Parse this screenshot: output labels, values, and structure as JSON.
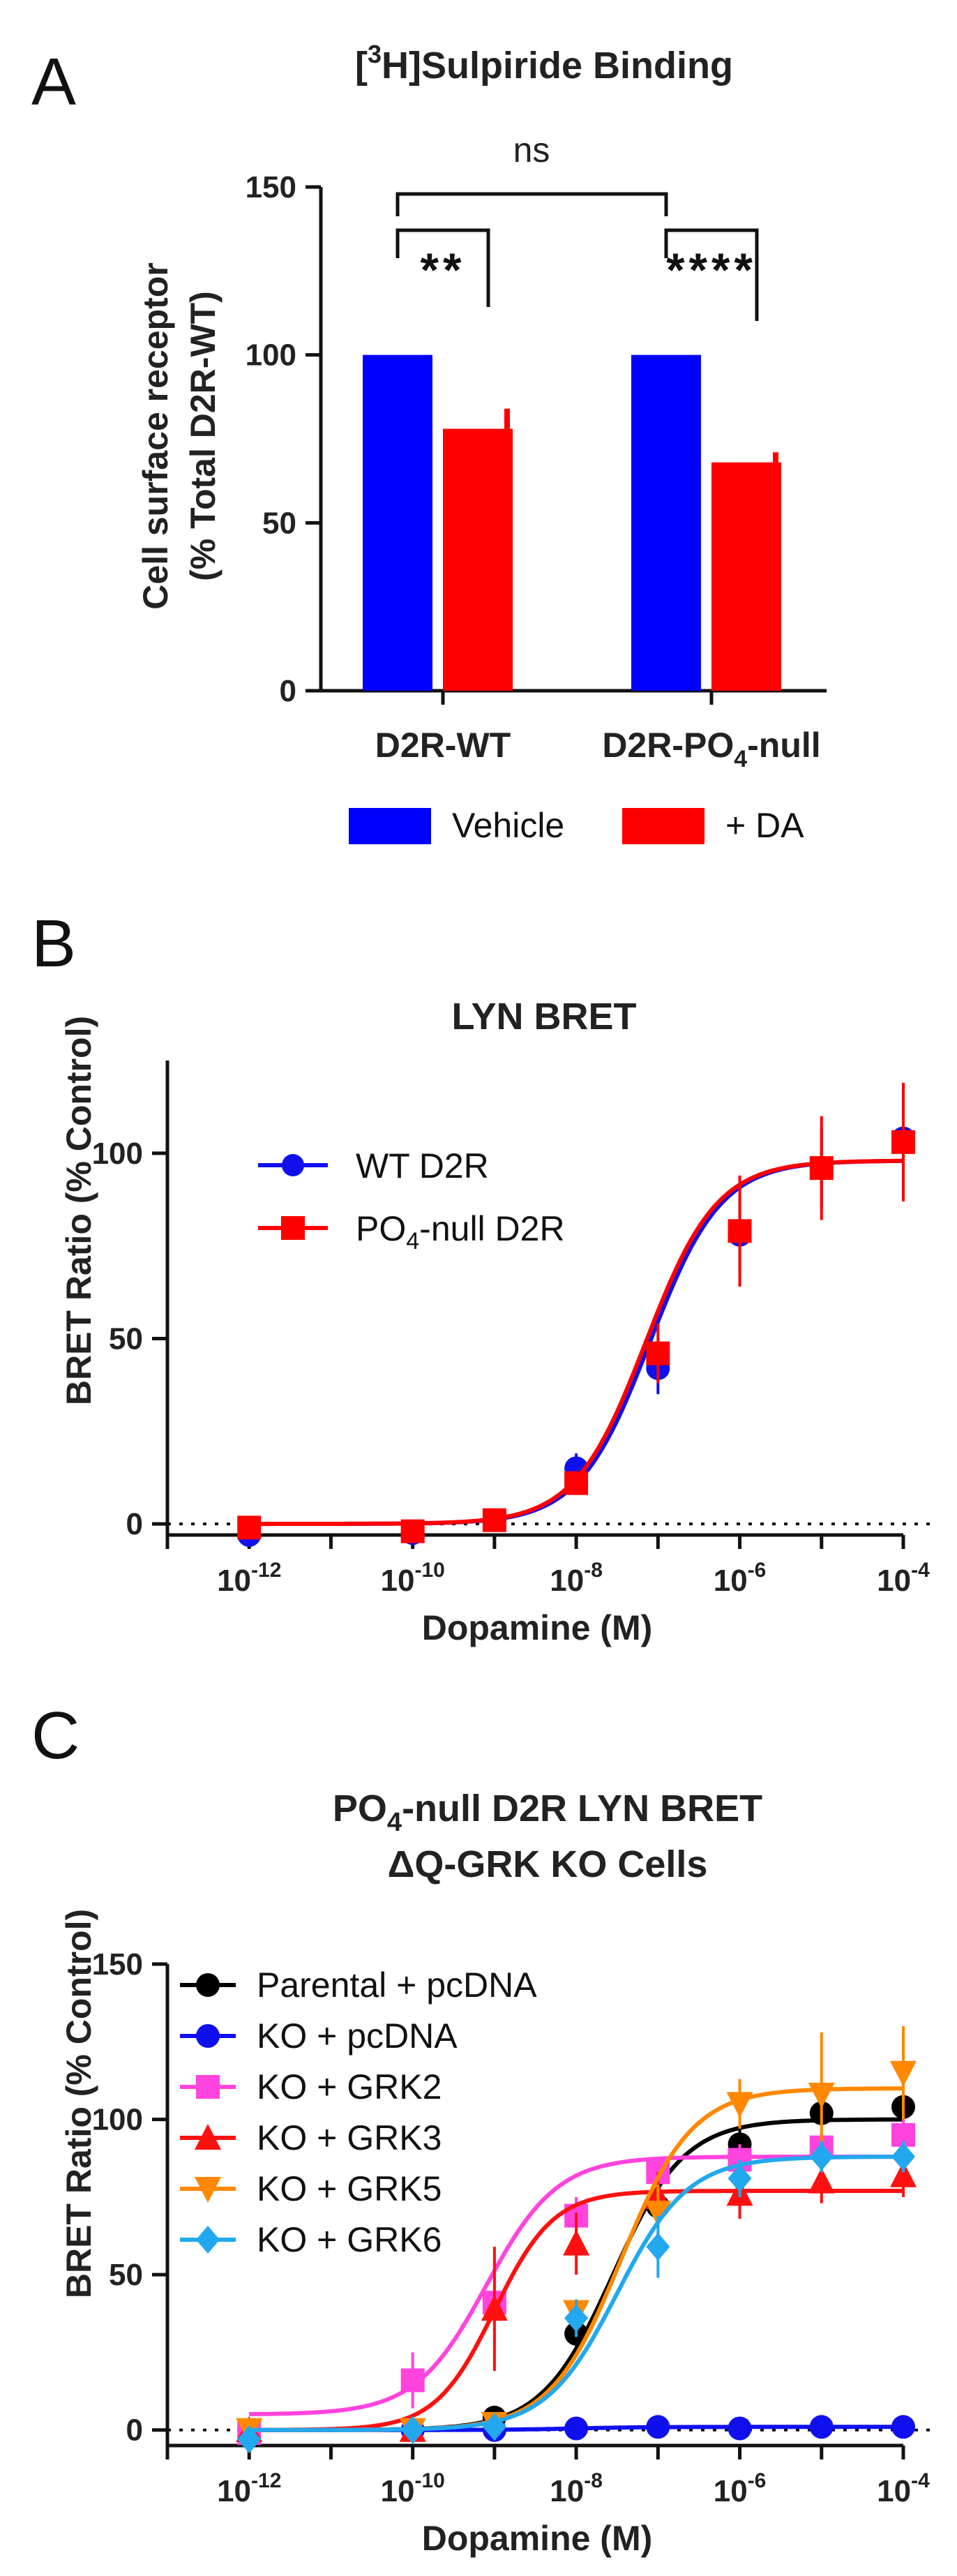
{
  "panels": {
    "a": {
      "letter": "A",
      "title_pre": "[",
      "title_sup": "3",
      "title_post": "H]Sulpiride Binding",
      "ylabel_line1": "Cell surface receptor",
      "ylabel_line2": "(% Total D2R-WT)",
      "significance": {
        "wt": "**",
        "null": "****",
        "between": "ns"
      },
      "legend": [
        "Vehicle",
        "+ DA"
      ],
      "category_labels": [
        {
          "main": "D2R-WT",
          "sub": "",
          "tail": ""
        },
        {
          "main": "D2R-PO",
          "sub": "4",
          "tail": "-null"
        }
      ]
    },
    "b": {
      "letter": "B",
      "title": "LYN BRET",
      "ylabel": "BRET Ratio (% Control)",
      "xlabel": "Dopamine (M)",
      "legend": [
        {
          "pre": "WT D2R",
          "sub": "",
          "post": ""
        },
        {
          "pre": "PO",
          "sub": "4",
          "post": "-null D2R"
        }
      ]
    },
    "c": {
      "letter": "C",
      "title_line1_pre": "PO",
      "title_line1_sub": "4",
      "title_line1_post": "-null D2R LYN BRET",
      "title_line2": "ΔQ-GRK KO Cells",
      "ylabel": "BRET Ratio (% Control)",
      "xlabel": "Dopamine (M)"
    }
  },
  "chart_data": [
    {
      "type": "bar",
      "title": "[3H]Sulpiride Binding",
      "ylabel": "Cell surface receptor (% Total D2R-WT)",
      "categories": [
        "D2R-WT",
        "D2R-PO4-null"
      ],
      "series": [
        {
          "name": "Vehicle",
          "color": "#0000ff",
          "values": [
            100,
            100
          ],
          "errors": [
            0,
            0
          ]
        },
        {
          "name": "+ DA",
          "color": "#ff0000",
          "values": [
            78,
            68
          ],
          "errors": [
            6,
            3
          ]
        }
      ],
      "ylim": [
        0,
        150
      ],
      "yticks": [
        0,
        50,
        100,
        150
      ]
    },
    {
      "type": "line",
      "title": "LYN BRET",
      "xlabel": "Dopamine (M)",
      "ylabel": "BRET Ratio (% Control)",
      "x_scale": "log",
      "xlim": [
        1e-13,
        0.0001
      ],
      "xticks": [
        {
          "base": "10",
          "exp": "-12"
        },
        {
          "base": "10",
          "exp": "-10"
        },
        {
          "base": "10",
          "exp": "-8"
        },
        {
          "base": "10",
          "exp": "-6"
        },
        {
          "base": "10",
          "exp": "-4"
        }
      ],
      "xtick_values": [
        1e-12,
        1e-10,
        1e-08,
        1e-06,
        0.0001
      ],
      "ylim": [
        -3,
        125
      ],
      "yticks": [
        0,
        50,
        100
      ],
      "baseline": 0,
      "legend_position": "upper-left",
      "series": [
        {
          "name": "WT D2R",
          "color": "#1010ee",
          "marker": "circle",
          "x": [
            1e-12,
            1e-10,
            1e-09,
            1e-08,
            1e-07,
            1e-06,
            1e-05,
            0.0001
          ],
          "y": [
            -3,
            -2.5,
            1,
            15,
            42,
            78,
            96,
            104
          ],
          "err": [
            0,
            0,
            1,
            4,
            7,
            10,
            11,
            14
          ],
          "fit": {
            "bottom": 0,
            "top": 98,
            "logEC50": -7.1,
            "hill": 1
          }
        },
        {
          "name": "PO4-null D2R",
          "color": "#ff0000",
          "marker": "square",
          "x": [
            1e-12,
            1e-10,
            1e-09,
            1e-08,
            1e-07,
            1e-06,
            1e-05,
            0.0001
          ],
          "y": [
            -1,
            -2,
            1,
            11,
            46,
            79,
            96,
            103
          ],
          "err": [
            0,
            0,
            1,
            3,
            8,
            15,
            14,
            16
          ],
          "fit": {
            "bottom": 0,
            "top": 98,
            "logEC50": -7.15,
            "hill": 1
          }
        }
      ]
    },
    {
      "type": "line",
      "title": "PO4-null D2R LYN BRET ΔQ-GRK KO Cells",
      "xlabel": "Dopamine (M)",
      "ylabel": "BRET Ratio (% Control)",
      "x_scale": "log",
      "xlim": [
        1e-13,
        0.0001
      ],
      "xticks": [
        {
          "base": "10",
          "exp": "-12"
        },
        {
          "base": "10",
          "exp": "-10"
        },
        {
          "base": "10",
          "exp": "-8"
        },
        {
          "base": "10",
          "exp": "-6"
        },
        {
          "base": "10",
          "exp": "-4"
        }
      ],
      "xtick_values": [
        1e-12,
        1e-10,
        1e-08,
        1e-06,
        0.0001
      ],
      "ylim": [
        -5,
        150
      ],
      "yticks": [
        0,
        50,
        100,
        150
      ],
      "baseline": 0,
      "legend_position": "upper-left",
      "series": [
        {
          "name": "Parental + pcDNA",
          "color": "#000000",
          "marker": "circle",
          "x": [
            1e-12,
            1e-10,
            1e-09,
            1e-08,
            1e-07,
            1e-06,
            1e-05,
            0.0001
          ],
          "y": [
            0,
            0,
            4,
            31,
            72,
            92,
            102,
            104
          ],
          "err": [
            0,
            0,
            2,
            4,
            6,
            5,
            4,
            4
          ],
          "fit": {
            "bottom": 0,
            "top": 100,
            "logEC50": -7.55,
            "hill": 1
          }
        },
        {
          "name": "KO + pcDNA",
          "color": "#1010ee",
          "marker": "circle",
          "x": [
            1e-12,
            1e-10,
            1e-09,
            1e-08,
            1e-07,
            1e-06,
            1e-05,
            0.0001
          ],
          "y": [
            0,
            0,
            0,
            0.5,
            1,
            0.5,
            1,
            1
          ],
          "err": [
            0,
            0,
            0,
            0,
            0,
            0,
            0,
            0
          ],
          "fit": {
            "bottom": 0,
            "top": 1,
            "logEC50": -8,
            "hill": 1
          }
        },
        {
          "name": "KO + GRK2",
          "color": "#ff44dd",
          "marker": "square",
          "x": [
            1e-12,
            1e-10,
            1e-09,
            1e-08,
            1e-07,
            1e-06,
            1e-05,
            0.0001
          ],
          "y": [
            -1,
            16,
            41,
            69,
            83,
            87,
            91,
            95
          ],
          "err": [
            0,
            9,
            14,
            6,
            4,
            5,
            5,
            5
          ],
          "fit": {
            "bottom": 5,
            "top": 88,
            "logEC50": -9.1,
            "hill": 1
          }
        },
        {
          "name": "KO + GRK3",
          "color": "#ff1010",
          "marker": "triangle-up",
          "x": [
            1e-12,
            1e-10,
            1e-09,
            1e-08,
            1e-07,
            1e-06,
            1e-05,
            0.0001
          ],
          "y": [
            0,
            0,
            39,
            60,
            75,
            76,
            80,
            82
          ],
          "err": [
            0,
            0,
            20,
            10,
            8,
            8,
            7,
            7
          ],
          "fit": {
            "bottom": 0,
            "top": 77,
            "logEC50": -9.0,
            "hill": 1.2
          }
        },
        {
          "name": "KO + GRK5",
          "color": "#ff8800",
          "marker": "triangle-down",
          "x": [
            1e-12,
            1e-10,
            1e-09,
            1e-08,
            1e-07,
            1e-06,
            1e-05,
            0.0001
          ],
          "y": [
            0,
            0,
            2,
            38,
            70,
            105,
            108,
            115
          ],
          "err": [
            0,
            0,
            3,
            4,
            9,
            8,
            20,
            15
          ],
          "fit": {
            "bottom": 0,
            "top": 110,
            "logEC50": -7.45,
            "hill": 1
          }
        },
        {
          "name": "KO + GRK6",
          "color": "#22a8ee",
          "marker": "diamond",
          "x": [
            1e-12,
            1e-10,
            1e-09,
            1e-08,
            1e-07,
            1e-06,
            1e-05,
            0.0001
          ],
          "y": [
            -3,
            0,
            1,
            36,
            59,
            81,
            88,
            88
          ],
          "err": [
            0,
            0,
            2,
            6,
            10,
            6,
            5,
            5
          ],
          "fit": {
            "bottom": 0,
            "top": 88,
            "logEC50": -7.5,
            "hill": 1
          }
        }
      ]
    }
  ]
}
